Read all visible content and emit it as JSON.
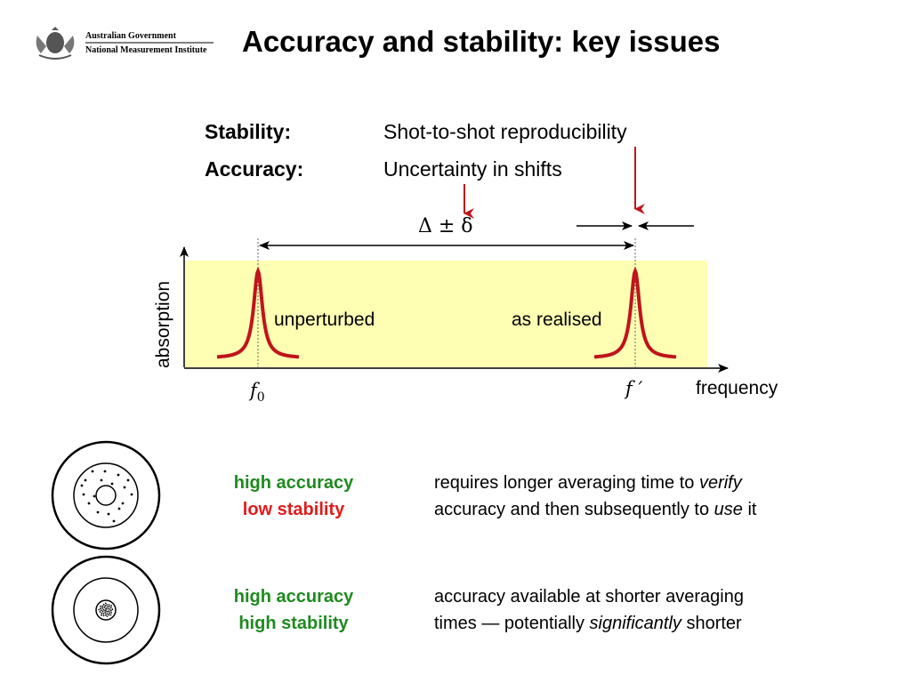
{
  "logo": {
    "line1": "Australian Government",
    "line2": "National Measurement Institute",
    "icon": "coat-of-arms-icon"
  },
  "title": "Accuracy and stability: key issues",
  "definitions": [
    {
      "term": "Stability:",
      "meaning": "Shot-to-shot reproducibility"
    },
    {
      "term": "Accuracy:",
      "meaning": "Uncertainty in shifts"
    }
  ],
  "plot": {
    "delta_label": "Δ ± δ",
    "y_axis_label": "absorption",
    "x_axis_label": "frequency",
    "f0_label": "f",
    "f0_sub": "0",
    "fprime_label": "f ′",
    "peak_left_label": "unperturbed",
    "peak_right_label": "as realised",
    "band_color": "#ffffb3",
    "peak_color": "#c0141c",
    "arrow_color": "#c0141c"
  },
  "cases": [
    {
      "accuracy": "high accuracy",
      "stability": "low stability",
      "desc_line1_pre": "requires longer averaging time to ",
      "desc_line1_em": "verify",
      "desc_line2_pre": "accuracy and then subsequently to ",
      "desc_line2_em": "use",
      "desc_line2_post": " it"
    },
    {
      "accuracy": "high accuracy",
      "stability": "high stability",
      "desc_line1_pre": "accuracy available at shorter averaging",
      "desc_line2_pre": "times — potentially ",
      "desc_line2_em": "significantly",
      "desc_line2_post": " shorter"
    }
  ],
  "colors": {
    "accuracy_green": "#1e8a1e",
    "stability_red": "#e01b1b",
    "stability_green": "#1e8a1e"
  }
}
